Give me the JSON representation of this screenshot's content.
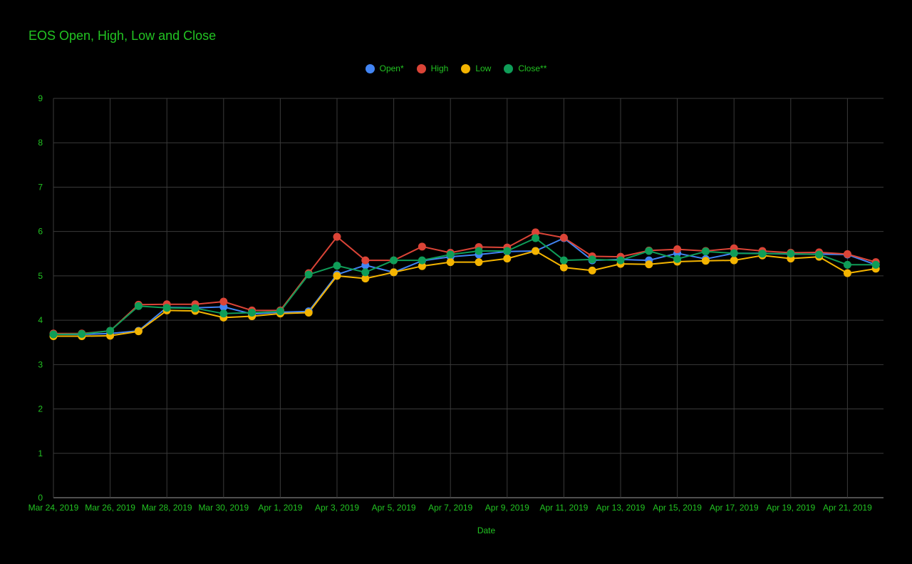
{
  "chart_data": {
    "type": "line",
    "title": "EOS Open, High, Low and Close",
    "xlabel": "Date",
    "ylabel": "",
    "ylim": [
      0,
      9
    ],
    "y_ticks": [
      "0",
      "1",
      "2",
      "3",
      "4",
      "5",
      "6",
      "7",
      "8",
      "9"
    ],
    "grid": true,
    "legend_position": "top-center",
    "x": [
      "Mar 24, 2019",
      "Mar 25, 2019",
      "Mar 26, 2019",
      "Mar 27, 2019",
      "Mar 28, 2019",
      "Mar 29, 2019",
      "Mar 30, 2019",
      "Mar 31, 2019",
      "Apr 1, 2019",
      "Apr 2, 2019",
      "Apr 3, 2019",
      "Apr 4, 2019",
      "Apr 5, 2019",
      "Apr 6, 2019",
      "Apr 7, 2019",
      "Apr 8, 2019",
      "Apr 9, 2019",
      "Apr 10, 2019",
      "Apr 11, 2019",
      "Apr 12, 2019",
      "Apr 13, 2019",
      "Apr 14, 2019",
      "Apr 15, 2019",
      "Apr 16, 2019",
      "Apr 17, 2019",
      "Apr 18, 2019",
      "Apr 19, 2019",
      "Apr 20, 2019",
      "Apr 21, 2019",
      "Apr 22, 2019"
    ],
    "x_tick_labels": [
      "Mar 24, 2019",
      "Mar 26, 2019",
      "Mar 28, 2019",
      "Mar 30, 2019",
      "Apr 1, 2019",
      "Apr 3, 2019",
      "Apr 5, 2019",
      "Apr 7, 2019",
      "Apr 9, 2019",
      "Apr 11, 2019",
      "Apr 13, 2019",
      "Apr 15, 2019",
      "Apr 17, 2019",
      "Apr 19, 2019",
      "Apr 21, 2019"
    ],
    "series": [
      {
        "name": "Open*",
        "color": "#4285f4",
        "values": [
          3.68,
          3.68,
          3.7,
          3.76,
          4.29,
          4.28,
          4.3,
          4.14,
          4.18,
          4.2,
          5.03,
          5.24,
          5.08,
          5.34,
          5.43,
          5.48,
          5.55,
          5.56,
          5.85,
          5.35,
          5.37,
          5.35,
          5.51,
          5.38,
          5.51,
          5.51,
          5.49,
          5.49,
          5.48,
          5.25
        ]
      },
      {
        "name": "High",
        "color": "#db4437",
        "values": [
          3.7,
          3.7,
          3.76,
          4.35,
          4.36,
          4.36,
          4.42,
          4.22,
          4.22,
          5.06,
          5.88,
          5.35,
          5.35,
          5.66,
          5.52,
          5.65,
          5.64,
          5.98,
          5.86,
          5.44,
          5.43,
          5.57,
          5.6,
          5.56,
          5.62,
          5.56,
          5.52,
          5.53,
          5.49,
          5.31
        ]
      },
      {
        "name": "Low",
        "color": "#f4b400",
        "values": [
          3.64,
          3.64,
          3.65,
          3.75,
          4.22,
          4.21,
          4.06,
          4.09,
          4.15,
          4.17,
          5.0,
          4.94,
          5.08,
          5.22,
          5.31,
          5.31,
          5.39,
          5.56,
          5.19,
          5.12,
          5.27,
          5.26,
          5.32,
          5.34,
          5.35,
          5.46,
          5.39,
          5.43,
          5.06,
          5.16
        ]
      },
      {
        "name": "Close**",
        "color": "#0f9d58",
        "values": [
          3.68,
          3.69,
          3.76,
          4.32,
          4.28,
          4.27,
          4.15,
          4.17,
          4.2,
          5.03,
          5.23,
          5.08,
          5.35,
          5.35,
          5.48,
          5.56,
          5.56,
          5.85,
          5.35,
          5.37,
          5.35,
          5.56,
          5.38,
          5.55,
          5.51,
          5.5,
          5.5,
          5.48,
          5.25,
          5.25
        ]
      }
    ]
  },
  "colors": {
    "background": "#000000",
    "text": "#22c322",
    "grid": "#3a3a3a",
    "axis": "#9e9e9e"
  }
}
